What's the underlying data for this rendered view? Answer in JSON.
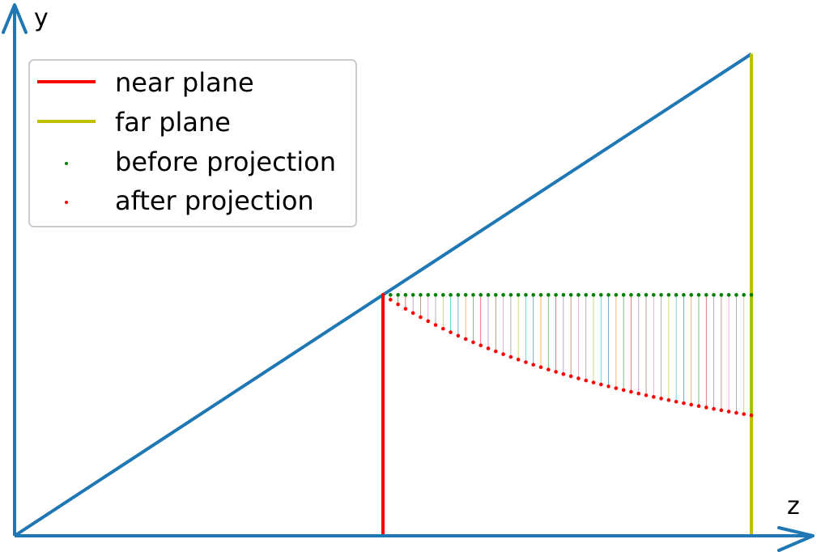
{
  "chart_data": {
    "type": "line",
    "title": "",
    "xlabel": "z",
    "ylabel": "y",
    "grid": false,
    "legend_position": "top-left",
    "xlim": [
      0,
      2
    ],
    "ylim": [
      0,
      1.3
    ],
    "near": 1,
    "far": 2,
    "frustum_slope": 0.66,
    "sample_height": 0.66,
    "colors": {
      "axis": "#1f77b4",
      "frustum": "#1f77b4",
      "near_plane": "#ff0000",
      "far_plane": "#bfbf00",
      "before": "#008000",
      "after": "#ff0000",
      "connectors": [
        "#1f77b4",
        "#ff7f0e",
        "#2ca02c",
        "#d62728",
        "#9467bd",
        "#8c564b",
        "#e377c2",
        "#7f7f7f",
        "#bcbd22",
        "#17becf"
      ]
    },
    "series": [
      {
        "name": "near plane",
        "kind": "line",
        "x": [
          1,
          1
        ],
        "y": [
          0,
          0.66
        ]
      },
      {
        "name": "far plane",
        "kind": "line",
        "x": [
          2,
          2
        ],
        "y": [
          0,
          1.32
        ]
      },
      {
        "name": "before projection",
        "kind": "points",
        "z_start": 1,
        "z_end": 2,
        "count": 50,
        "y": 0.66
      },
      {
        "name": "after projection",
        "kind": "points",
        "rule": "y_after = y * near / z"
      }
    ],
    "legend": [
      {
        "label": "near plane",
        "marker": "line",
        "color": "#ff0000"
      },
      {
        "label": "far plane",
        "marker": "line",
        "color": "#bfbf00"
      },
      {
        "label": "before projection",
        "marker": "dot",
        "color": "#008000"
      },
      {
        "label": "after projection",
        "marker": "dot",
        "color": "#ff0000"
      }
    ]
  }
}
